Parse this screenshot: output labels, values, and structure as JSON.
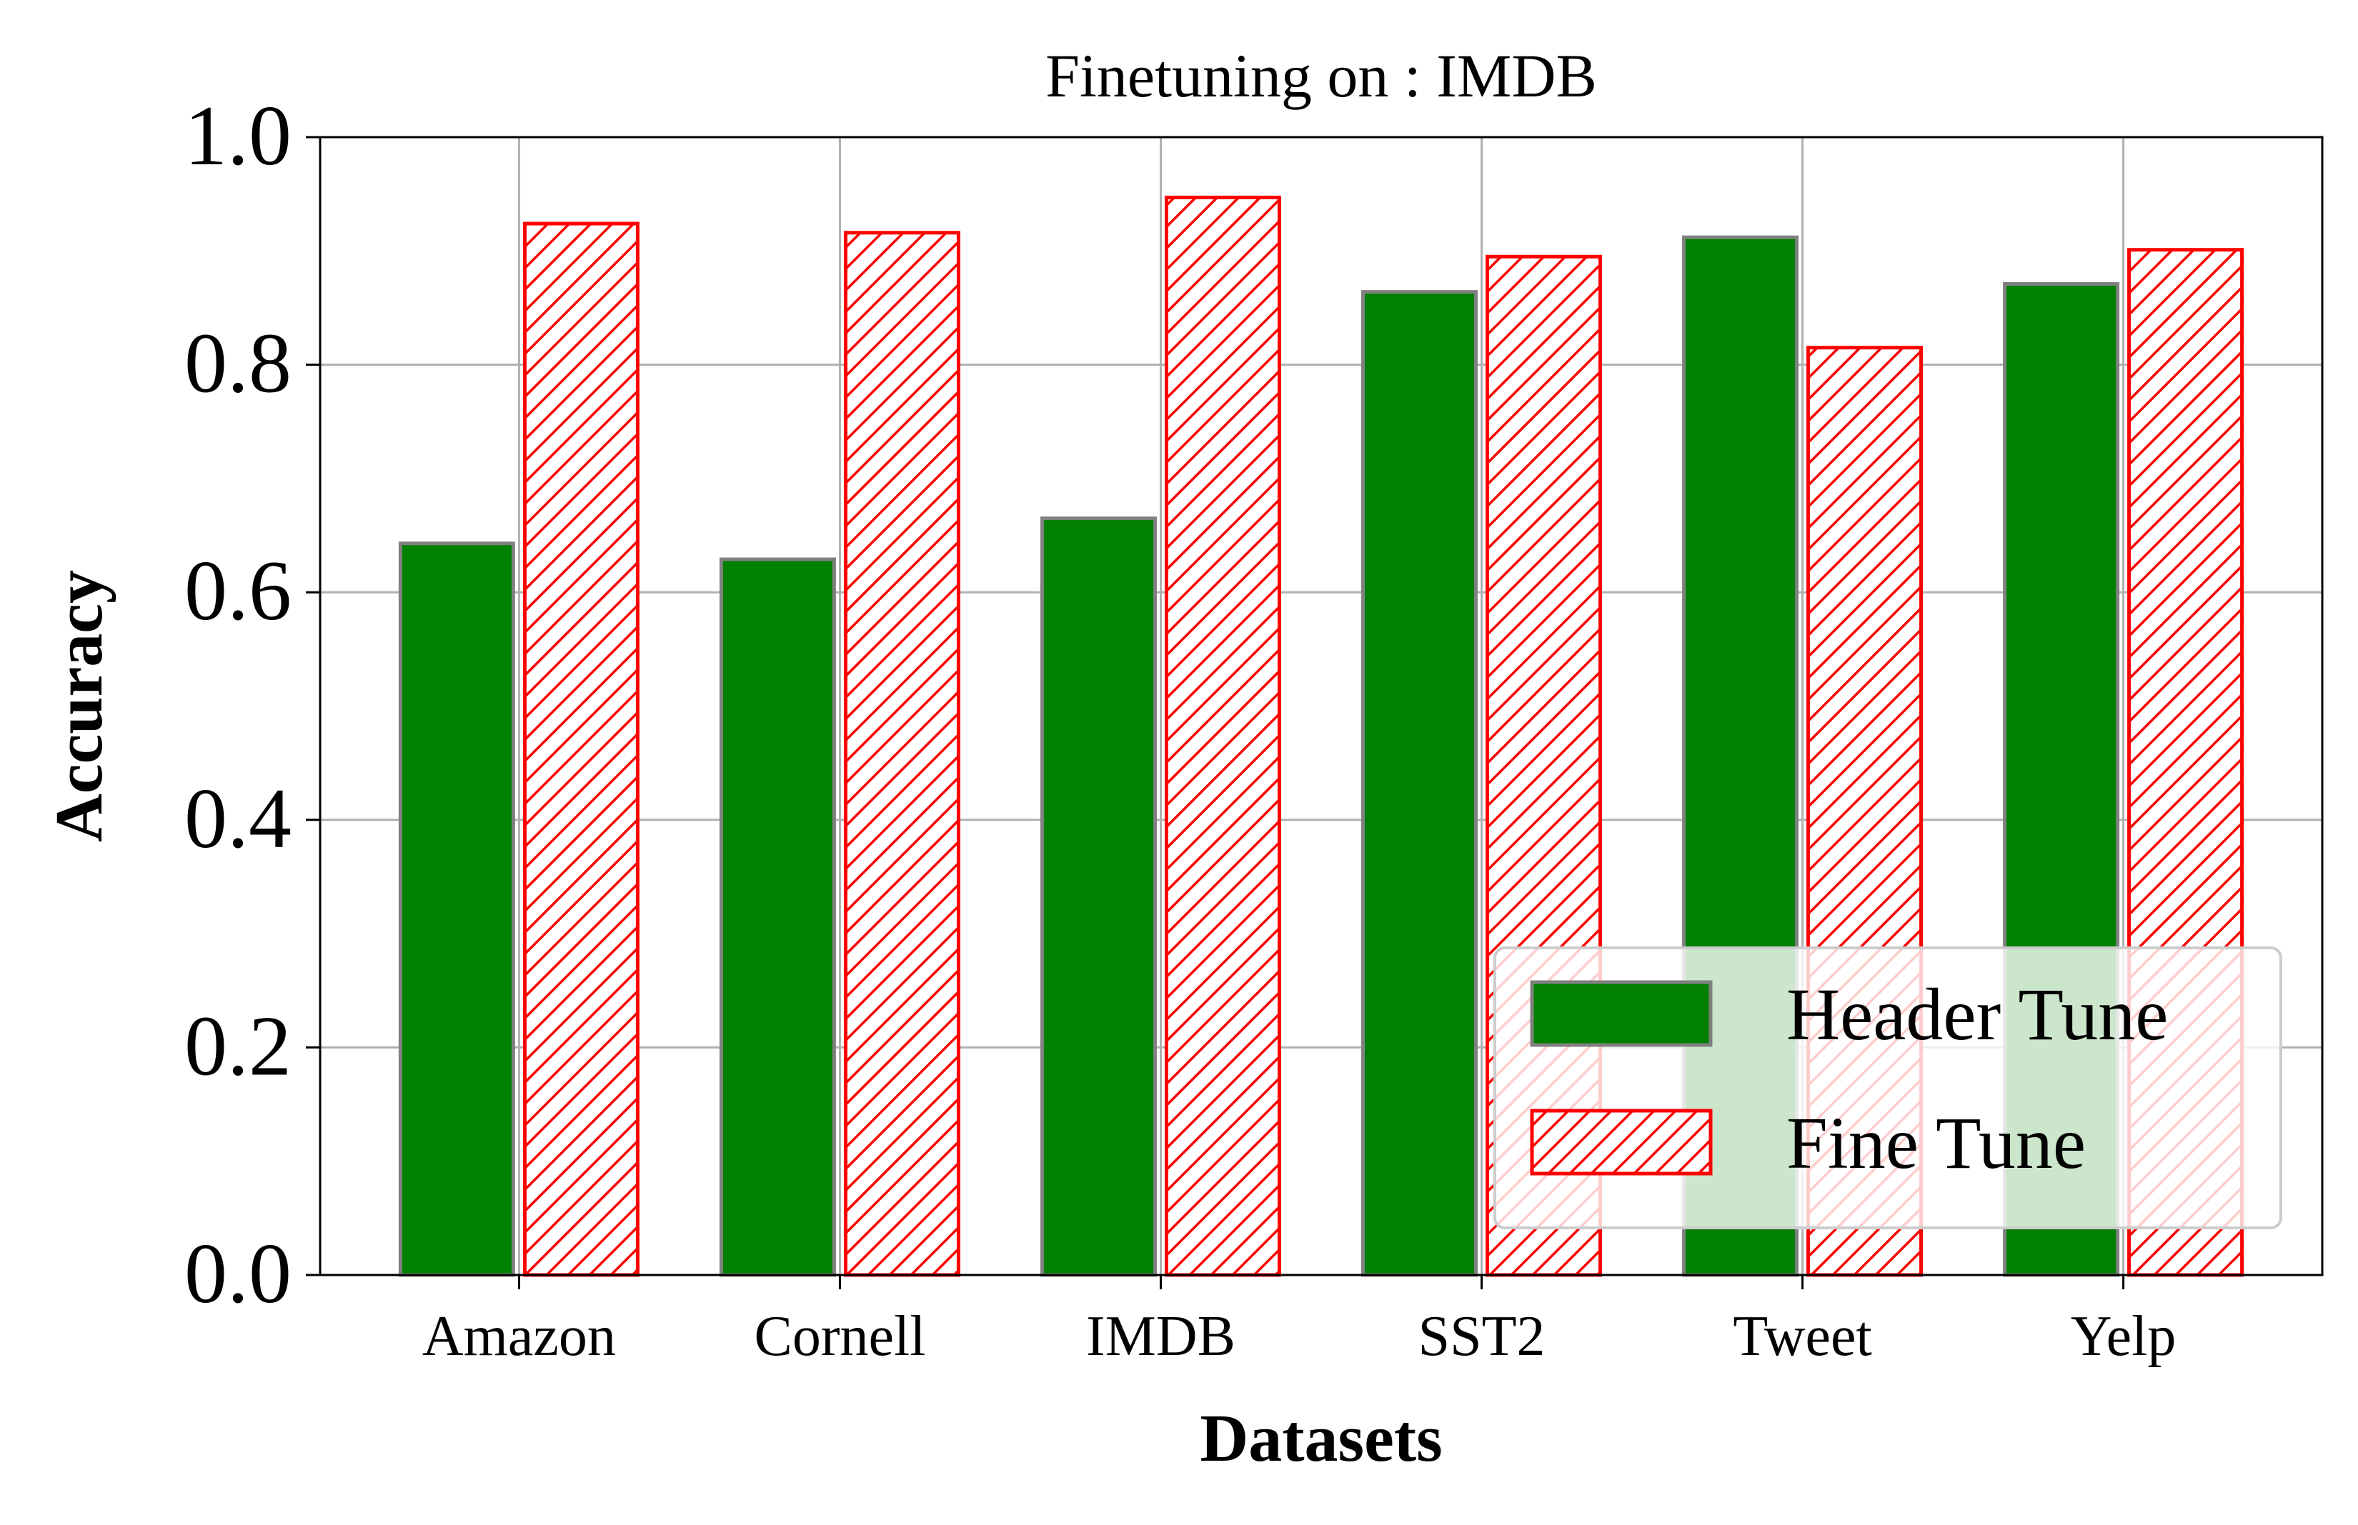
{
  "chart_data": {
    "type": "bar",
    "title": "Finetuning on : IMDB",
    "xlabel": "Datasets",
    "ylabel": "Accuracy",
    "categories": [
      "Amazon",
      "Cornell",
      "IMDB",
      "SST2",
      "Tweet",
      "Yelp"
    ],
    "series": [
      {
        "name": "Header Tune",
        "values": [
          0.643,
          0.629,
          0.665,
          0.864,
          0.912,
          0.871
        ],
        "color": "#008000",
        "edge_color": "#808080",
        "hatch": false
      },
      {
        "name": "Fine Tune",
        "values": [
          0.924,
          0.916,
          0.947,
          0.895,
          0.815,
          0.901
        ],
        "color": "#ffffff",
        "edge_color": "#ff0000",
        "hatch": true
      }
    ],
    "ylim": [
      0,
      1.0
    ],
    "yticks": [
      "0.0",
      "0.2",
      "0.4",
      "0.6",
      "0.8",
      "1.0"
    ],
    "grid": true,
    "legend_position": "lower right"
  }
}
